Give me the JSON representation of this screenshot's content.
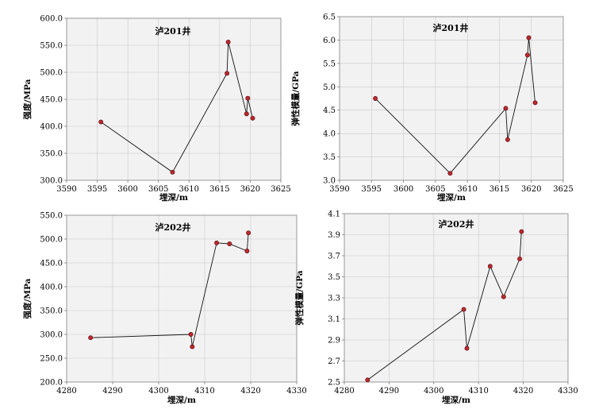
{
  "chart_data": [
    {
      "type": "line",
      "title": "泸201井",
      "xlabel": "埋深/m",
      "ylabel": "强度/MPa",
      "xlim": [
        3590,
        3625
      ],
      "ylim": [
        300.0,
        600.0
      ],
      "xticks": [
        "3590",
        "3595",
        "3600",
        "3605",
        "3610",
        "3615",
        "3620",
        "3625"
      ],
      "yticks": [
        "300.0",
        "350.0",
        "400.0",
        "450.0",
        "500.0",
        "550.0",
        "600.0"
      ],
      "grid": true,
      "x": [
        3595.6,
        3607.3,
        3616.2,
        3616.4,
        3619.4,
        3619.6,
        3620.4
      ],
      "y": [
        408,
        315,
        498,
        556,
        423,
        452,
        415
      ]
    },
    {
      "type": "line",
      "title": "泸201井",
      "xlabel": "埋深/m",
      "ylabel": "弹性模量/GPa",
      "xlim": [
        3590,
        3625
      ],
      "ylim": [
        3.0,
        6.5
      ],
      "xticks": [
        "3590",
        "3595",
        "3600",
        "3605",
        "3610",
        "3615",
        "3620",
        "3625"
      ],
      "yticks": [
        "3.0",
        "3.5",
        "4.0",
        "4.5",
        "5.0",
        "5.5",
        "6.0",
        "6.5"
      ],
      "grid": true,
      "x": [
        3595.6,
        3607.3,
        3616.0,
        3616.3,
        3619.4,
        3619.6,
        3620.6
      ],
      "y": [
        4.75,
        3.15,
        4.54,
        3.87,
        5.68,
        6.05,
        4.66
      ]
    },
    {
      "type": "line",
      "title": "泸202井",
      "xlabel": "埋深/m",
      "ylabel": "强度/MPa",
      "xlim": [
        4280,
        4330
      ],
      "ylim": [
        200.0,
        550.0
      ],
      "xticks": [
        "4280",
        "4290",
        "4300",
        "4310",
        "4320",
        "4330"
      ],
      "yticks": [
        "200.0",
        "250.0",
        "300.0",
        "350.0",
        "400.0",
        "450.0",
        "500.0",
        "550.0"
      ],
      "grid": true,
      "x": [
        4285.2,
        4307.0,
        4307.3,
        4312.6,
        4315.4,
        4319.2,
        4319.5
      ],
      "y": [
        293,
        300,
        274,
        492,
        490,
        475,
        513
      ]
    },
    {
      "type": "line",
      "title": "泸202井",
      "xlabel": "埋深/m",
      "ylabel": "弹性模量/GPa",
      "xlim": [
        4280,
        4330
      ],
      "ylim": [
        2.5,
        4.1
      ],
      "xticks": [
        "4280",
        "4290",
        "4300",
        "4310",
        "4320",
        "4330"
      ],
      "yticks": [
        "2.5",
        "2.7",
        "2.9",
        "3.1",
        "3.3",
        "3.5",
        "3.7",
        "3.9",
        "4.1"
      ],
      "grid": true,
      "x": [
        4285.2,
        4306.7,
        4307.4,
        4312.6,
        4315.6,
        4319.2,
        4319.6
      ],
      "y": [
        2.52,
        3.19,
        2.82,
        3.6,
        3.31,
        3.67,
        3.93
      ]
    }
  ]
}
